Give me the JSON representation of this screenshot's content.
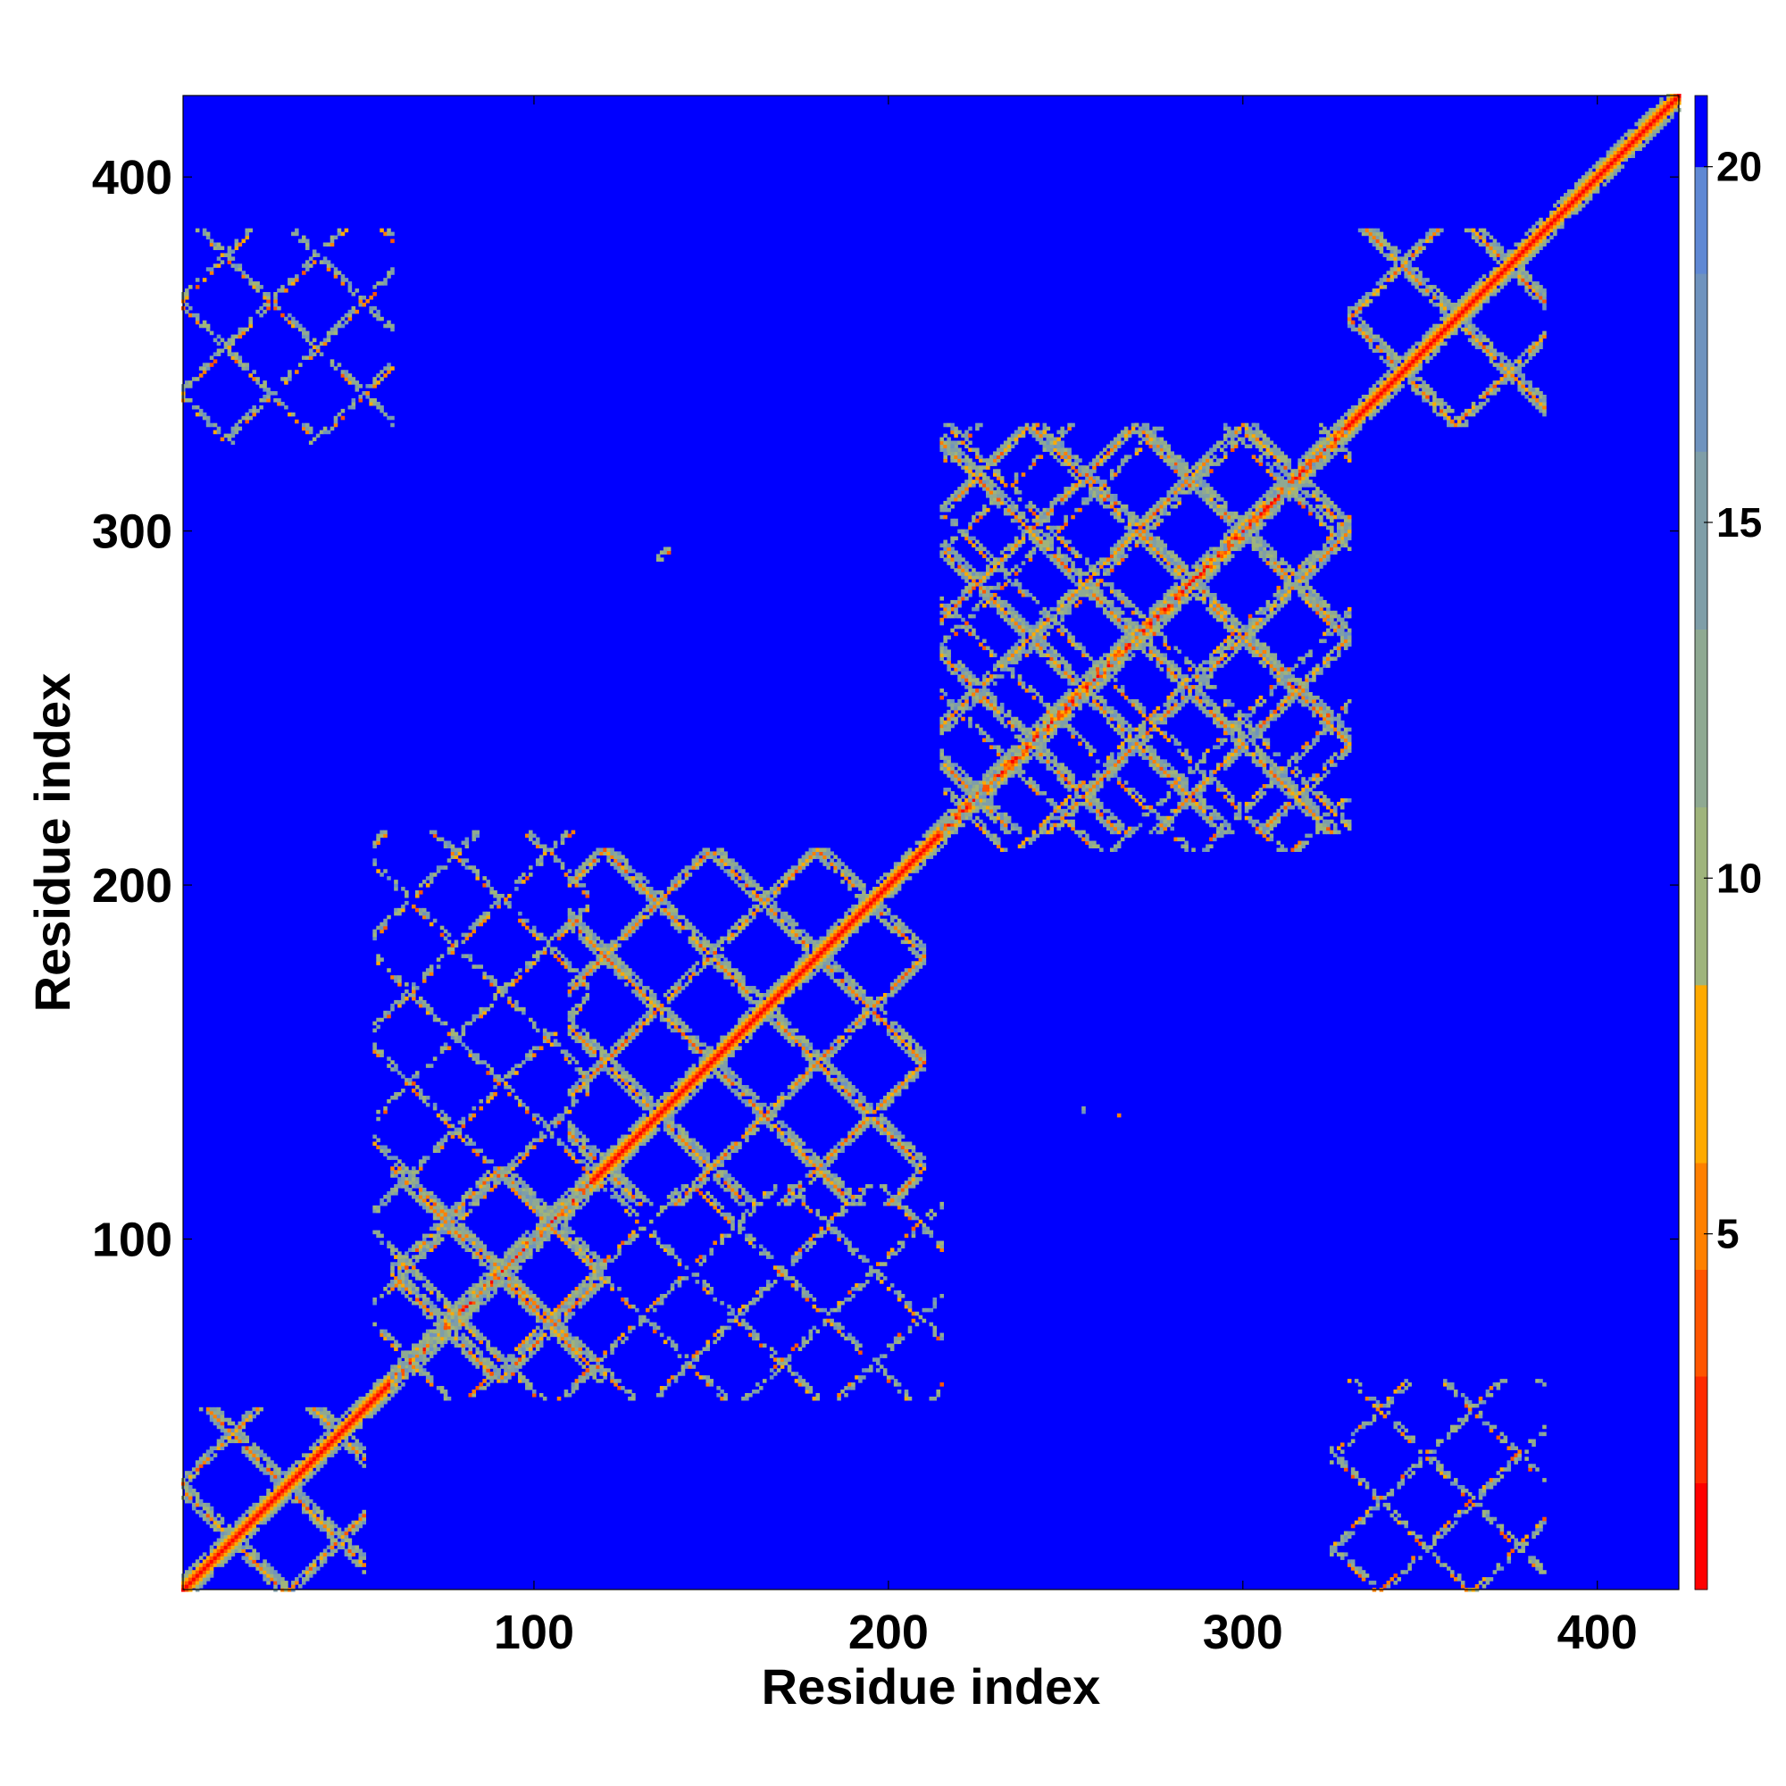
{
  "chart_data": {
    "type": "heatmap",
    "title": "",
    "xlabel": "Residue index",
    "ylabel": "Residue index",
    "xlim": [
      1,
      423
    ],
    "ylim": [
      1,
      423
    ],
    "x_ticks": [
      100,
      200,
      300,
      400
    ],
    "y_ticks": [
      100,
      200,
      300,
      400
    ],
    "value_range": [
      0,
      21
    ],
    "colorbar": {
      "ticks": [
        5,
        10,
        15,
        20
      ],
      "colors": [
        "#ff0000",
        "#ff2a00",
        "#ff5500",
        "#ff8000",
        "#ffaa00",
        "#9fb47c",
        "#8fa992",
        "#7f9ea8",
        "#6f93be",
        "#5f88d4",
        "#0000ff"
      ],
      "boundaries": [
        0,
        1.5,
        3,
        4.5,
        6,
        8.5,
        11,
        13.5,
        16,
        18.5,
        20,
        21
      ]
    },
    "background_value": 21,
    "description_note_free": true,
    "diagonal": {
      "from": 1,
      "to": 423
    },
    "helix_blocks": [
      {
        "start": 1,
        "end": 52
      },
      {
        "start": 60,
        "end": 120
      },
      {
        "start": 110,
        "end": 210
      },
      {
        "start": 215,
        "end": 330
      },
      {
        "start": 330,
        "end": 385
      }
    ],
    "offdiagonal_contacts": [
      {
        "x_range": [
          1,
          60
        ],
        "y_range": [
          325,
          385
        ]
      },
      {
        "x_range": [
          325,
          385
        ],
        "y_range": [
          1,
          60
        ]
      },
      {
        "x_range": [
          55,
          115
        ],
        "y_range": [
          60,
          215
        ]
      },
      {
        "x_range": [
          60,
          215
        ],
        "y_range": [
          55,
          115
        ]
      },
      {
        "x_range": [
          215,
          330
        ],
        "y_range": [
          210,
          330
        ]
      },
      {
        "x_range": [
          135,
          145
        ],
        "y_range": [
          285,
          295
        ]
      },
      {
        "x_range": [
          255,
          265
        ],
        "y_range": [
          135,
          145
        ]
      }
    ],
    "grid": false,
    "legend": "none"
  }
}
